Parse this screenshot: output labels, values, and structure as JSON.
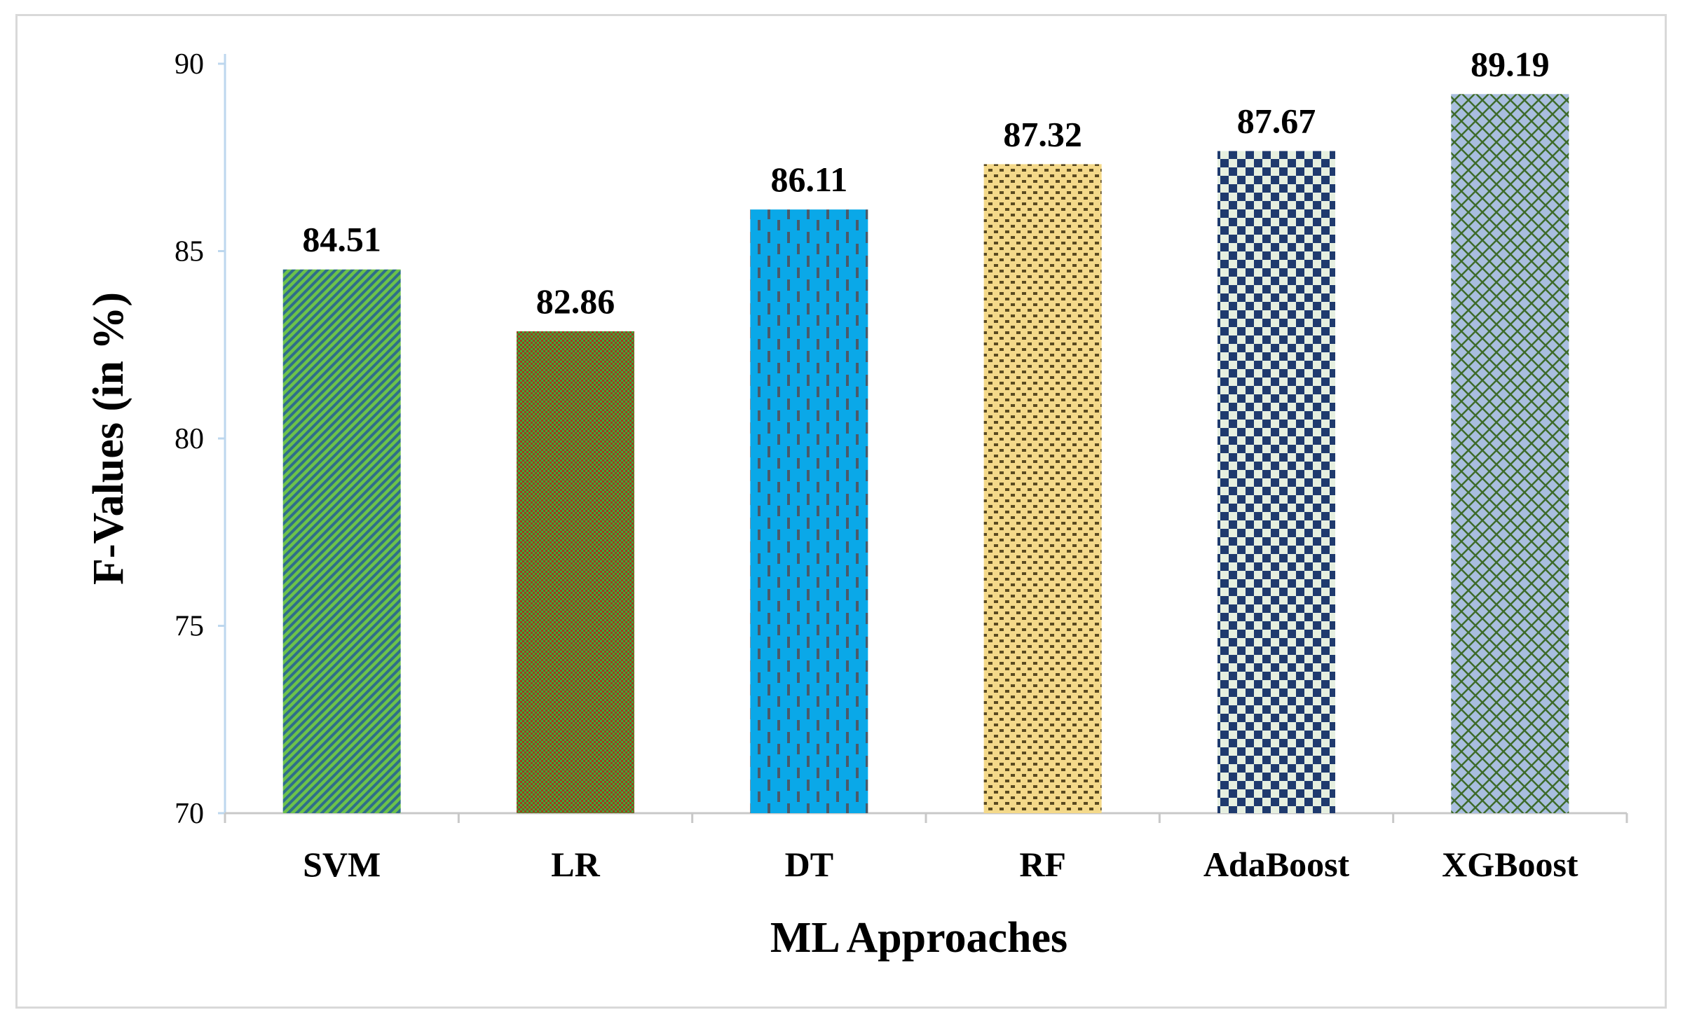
{
  "chart_data": {
    "type": "bar",
    "title": "",
    "xlabel": "ML Approaches",
    "ylabel": "F-Values (in %)",
    "categories": [
      "SVM",
      "LR",
      "DT",
      "RF",
      "AdaBoost",
      "XGBoost"
    ],
    "values": [
      84.51,
      82.86,
      86.11,
      87.32,
      87.67,
      89.19
    ],
    "value_labels": [
      "84.51",
      "82.86",
      "86.11",
      "87.32",
      "87.67",
      "89.19"
    ],
    "ylim": [
      70,
      90
    ],
    "yticks": [
      70,
      75,
      80,
      85,
      90
    ],
    "ytick_labels": [
      "70",
      "75",
      "80",
      "85",
      "90"
    ],
    "grid": false,
    "legend": "none",
    "bar_styles": [
      {
        "pattern": "diagonal-stripes",
        "fg": "#2f6e8a",
        "bg": "#6cc24a"
      },
      {
        "pattern": "checker-small",
        "fg": "#3fa83c",
        "bg": "#a13a1c"
      },
      {
        "pattern": "vertical-dashes",
        "fg": "#4a5a6a",
        "bg": "#0aa8e8"
      },
      {
        "pattern": "dotted-brick",
        "fg": "#5a4a20",
        "bg": "#f4d98a"
      },
      {
        "pattern": "checker-large",
        "fg": "#1f3a6e",
        "bg": "#e6efe0"
      },
      {
        "pattern": "diamond-lattice",
        "fg": "#3d6b2a",
        "bg": "#a9bedf"
      }
    ]
  }
}
